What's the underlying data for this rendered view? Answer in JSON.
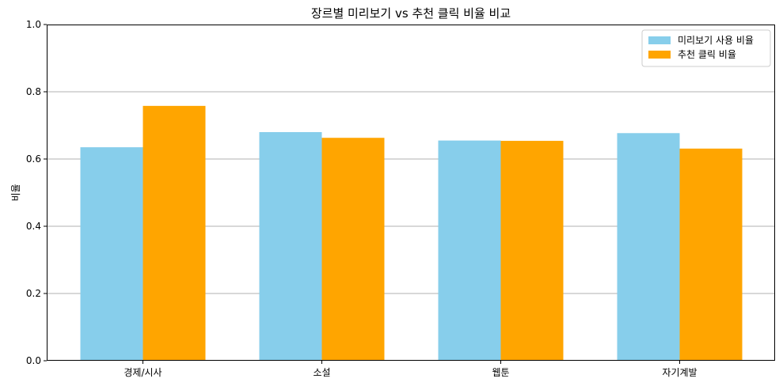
{
  "chart_data": {
    "type": "bar",
    "title": "장르별 미리보기 vs 추천 클릭 비율 비교",
    "xlabel": "",
    "ylabel": "비율",
    "categories": [
      "경제/시사",
      "소설",
      "웹툰",
      "자기계발"
    ],
    "series": [
      {
        "name": "미리보기 사용 비율",
        "color": "#87ceeb",
        "values": [
          0.635,
          0.68,
          0.655,
          0.677
        ]
      },
      {
        "name": "추천 클릭 비율",
        "color": "#ffa500",
        "values": [
          0.758,
          0.663,
          0.654,
          0.631
        ]
      }
    ],
    "ylim": [
      0,
      1.0
    ],
    "yticks": [
      "0.0",
      "0.2",
      "0.4",
      "0.6",
      "0.8",
      "1.0"
    ],
    "grid": "y",
    "legend_position": "top-right"
  }
}
